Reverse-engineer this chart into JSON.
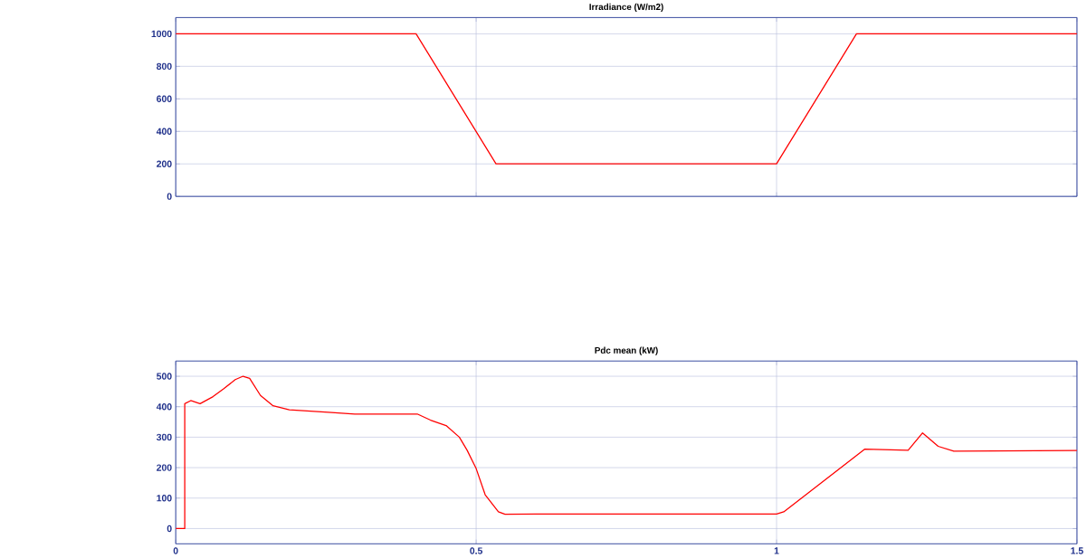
{
  "chart_data": [
    {
      "type": "line",
      "title": "Irradiance (W/m2)",
      "x": [
        0,
        0.4,
        0.533,
        1.0,
        1.133,
        1.5
      ],
      "series": [
        {
          "color": "#ff0000",
          "values": [
            1000,
            1000,
            200,
            200,
            1000,
            1000
          ]
        }
      ],
      "xlim": [
        0,
        1.5
      ],
      "ylim": [
        0,
        1100
      ],
      "xticks": [
        0,
        0.5,
        1,
        1.5
      ],
      "yticks": [
        0,
        200,
        400,
        600,
        800,
        1000
      ],
      "grid": true,
      "tick_labels": "y"
    },
    {
      "type": "line",
      "title": "Pdc mean (kW)",
      "x": [
        0,
        0.015,
        0.015,
        0.025,
        0.0405,
        0.062,
        0.08,
        0.099,
        0.112,
        0.123,
        0.141,
        0.162,
        0.189,
        0.254,
        0.298,
        0.402,
        0.424,
        0.45,
        0.472,
        0.485,
        0.5,
        0.515,
        0.537,
        0.548,
        0.6,
        1.0,
        1.012,
        1.147,
        1.219,
        1.243,
        1.269,
        1.295,
        1.5
      ],
      "series": [
        {
          "color": "#ff0000",
          "values": [
            0,
            0,
            410,
            420,
            410,
            433,
            459,
            489,
            500,
            493,
            437,
            403,
            390,
            382,
            376,
            376,
            356,
            338,
            300,
            257,
            197,
            111,
            55,
            47,
            48,
            48,
            55,
            261,
            257,
            314,
            270,
            254,
            256
          ]
        }
      ],
      "xlim": [
        0,
        1.5
      ],
      "ylim": [
        -50,
        550
      ],
      "xticks": [
        0,
        0.5,
        1,
        1.5
      ],
      "yticks": [
        0,
        100,
        200,
        300,
        400,
        500
      ],
      "grid": true
    }
  ]
}
